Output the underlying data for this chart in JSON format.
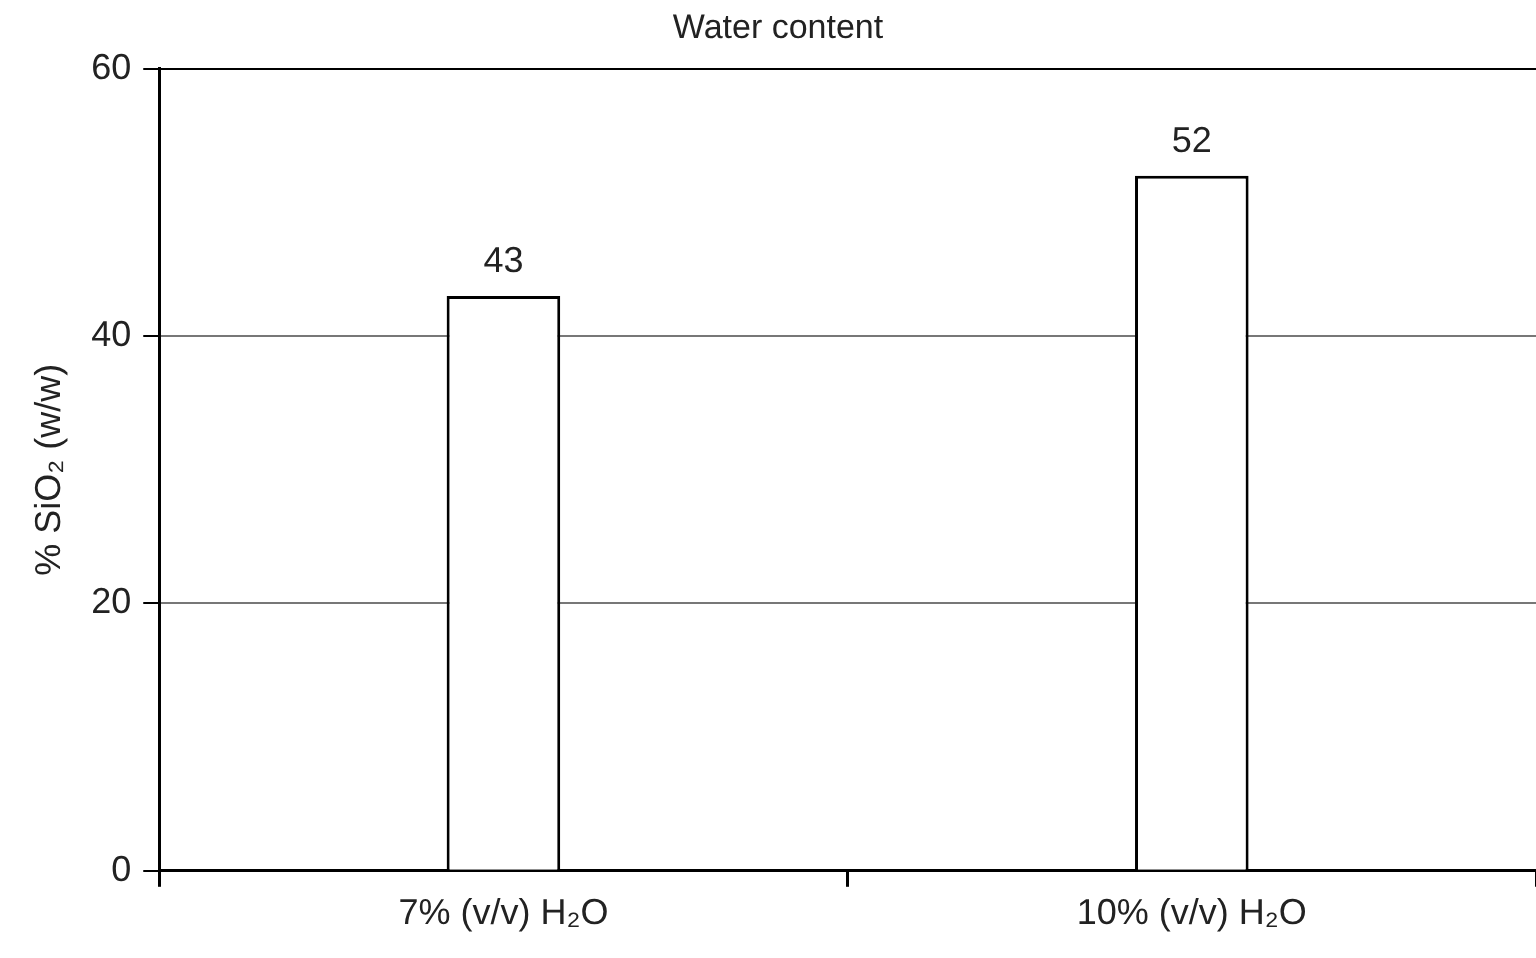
{
  "chart_data": {
    "type": "bar",
    "title": "Water content",
    "ylabel": "% SiO₂ (w/w)",
    "categories": [
      "7% (v/v) H₂O",
      "10% (v/v) H₂O"
    ],
    "values": [
      43,
      52
    ],
    "color": "#ffffff",
    "ylim": [
      0,
      60
    ],
    "yticks": [
      0,
      20,
      40,
      60
    ],
    "grid": "y",
    "legend": false,
    "data_labels": true
  }
}
